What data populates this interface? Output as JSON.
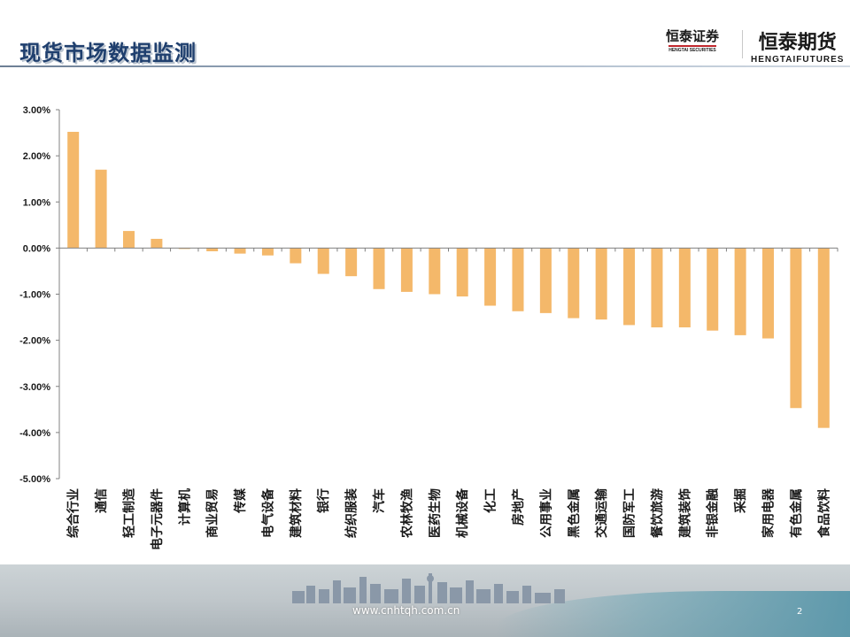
{
  "page": {
    "title": "现货市场数据监测",
    "logos": [
      {
        "name": "恒泰证券",
        "sub": "HENGTAI SECURITIES"
      },
      {
        "name": "恒泰期货",
        "sub": "HENGTAIFUTURES"
      }
    ],
    "footer": {
      "url": "www.cnhtqh.com.cn",
      "page_number": "2"
    }
  },
  "colors": {
    "bar": "#f4b86a",
    "axis": "#808080",
    "title": "#1f3f6e"
  },
  "chart_data": {
    "type": "bar",
    "title": "",
    "xlabel": "",
    "ylabel": "",
    "ylim": [
      -5,
      3
    ],
    "yticks": [
      3,
      2,
      1,
      0,
      -1,
      -2,
      -3,
      -4,
      -5
    ],
    "ytick_labels": [
      "3.00%",
      "2.00%",
      "1.00%",
      "0.00%",
      "-1.00%",
      "-2.00%",
      "-3.00%",
      "-4.00%",
      "-5.00%"
    ],
    "grid": false,
    "legend": "none",
    "categories": [
      "综合行业",
      "通信",
      "轻工制造",
      "电子元器件",
      "计算机",
      "商业贸易",
      "传媒",
      "电气设备",
      "建筑材料",
      "银行",
      "纺织服装",
      "汽车",
      "农林牧渔",
      "医药生物",
      "机械设备",
      "化工",
      "房地产",
      "公用事业",
      "黑色金属",
      "交通运输",
      "国防军工",
      "餐饮旅游",
      "建筑装饰",
      "非银金融",
      "采掘",
      "家用电器",
      "有色金属",
      "食品饮料"
    ],
    "values": [
      2.52,
      1.7,
      0.37,
      0.2,
      -0.02,
      -0.07,
      -0.12,
      -0.16,
      -0.33,
      -0.56,
      -0.61,
      -0.89,
      -0.95,
      -1.0,
      -1.05,
      -1.25,
      -1.37,
      -1.41,
      -1.52,
      -1.55,
      -1.67,
      -1.72,
      -1.72,
      -1.79,
      -1.89,
      -1.96,
      -3.47,
      -3.9
    ]
  }
}
